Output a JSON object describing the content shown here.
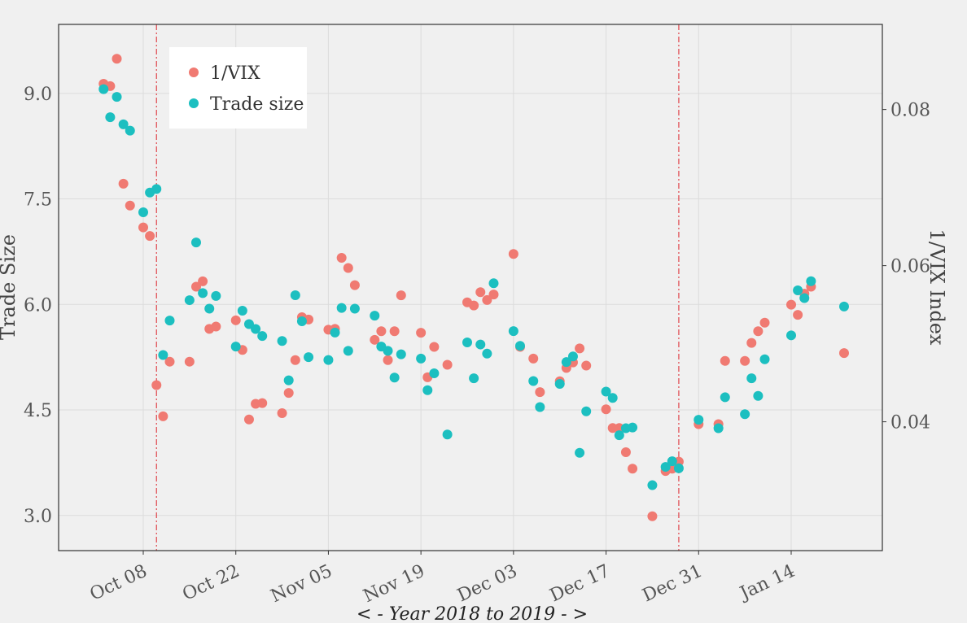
{
  "chart_data": {
    "type": "scatter",
    "xlabel": "< - Year 2018 to 2019 - >",
    "ylabel": "Trade Size",
    "y2label": "1/VIX Index",
    "x_ticks": [
      "Oct 08",
      "Oct 22",
      "Nov 05",
      "Nov 19",
      "Dec 03",
      "Dec 17",
      "Dec 31",
      "Jan 14"
    ],
    "y_ticks": [
      "3.0",
      "4.5",
      "6.0",
      "7.5",
      "9.0"
    ],
    "y2_ticks": [
      "0.04",
      "0.06",
      "0.08"
    ],
    "ylim": [
      2.5,
      9.98
    ],
    "y2lim": [
      0.0235,
      0.0909
    ],
    "grid": true,
    "legend_position": "top-left",
    "vlines": [
      "2018-10-10",
      "2018-12-28"
    ],
    "series": [
      {
        "name": "1/VIX",
        "color": "#F07A72",
        "axis": "right",
        "points": [
          [
            "2018-10-02",
            0.0833
          ],
          [
            "2018-10-03",
            0.083
          ],
          [
            "2018-10-04",
            0.0865
          ],
          [
            "2018-10-05",
            0.0705
          ],
          [
            "2018-10-06",
            0.0677
          ],
          [
            "2018-10-08",
            0.0649
          ],
          [
            "2018-10-09",
            0.0638
          ],
          [
            "2018-10-10",
            0.0447
          ],
          [
            "2018-10-11",
            0.0407
          ],
          [
            "2018-10-12",
            0.0477
          ],
          [
            "2018-10-15",
            0.0477
          ],
          [
            "2018-10-16",
            0.0573
          ],
          [
            "2018-10-17",
            0.058
          ],
          [
            "2018-10-18",
            0.0519
          ],
          [
            "2018-10-19",
            0.0522
          ],
          [
            "2018-10-22",
            0.053
          ],
          [
            "2018-10-23",
            0.0492
          ],
          [
            "2018-10-24",
            0.0403
          ],
          [
            "2018-10-25",
            0.0423
          ],
          [
            "2018-10-26",
            0.0424
          ],
          [
            "2018-10-29",
            0.0411
          ],
          [
            "2018-10-30",
            0.0437
          ],
          [
            "2018-10-31",
            0.0479
          ],
          [
            "2018-11-01",
            0.0534
          ],
          [
            "2018-11-02",
            0.0531
          ],
          [
            "2018-11-05",
            0.0518
          ],
          [
            "2018-11-06",
            0.0519
          ],
          [
            "2018-11-07",
            0.061
          ],
          [
            "2018-11-08",
            0.0597
          ],
          [
            "2018-11-09",
            0.0575
          ],
          [
            "2018-11-12",
            0.0505
          ],
          [
            "2018-11-13",
            0.0516
          ],
          [
            "2018-11-14",
            0.0479
          ],
          [
            "2018-11-15",
            0.0516
          ],
          [
            "2018-11-16",
            0.0562
          ],
          [
            "2018-11-19",
            0.0514
          ],
          [
            "2018-11-20",
            0.0457
          ],
          [
            "2018-11-21",
            0.0496
          ],
          [
            "2018-11-23",
            0.0473
          ],
          [
            "2018-11-26",
            0.0553
          ],
          [
            "2018-11-27",
            0.0549
          ],
          [
            "2018-11-28",
            0.0566
          ],
          [
            "2018-11-29",
            0.0556
          ],
          [
            "2018-11-30",
            0.0563
          ],
          [
            "2018-12-03",
            0.0615
          ],
          [
            "2018-12-04",
            0.0496
          ],
          [
            "2018-12-06",
            0.0481
          ],
          [
            "2018-12-07",
            0.0438
          ],
          [
            "2018-12-10",
            0.0452
          ],
          [
            "2018-12-11",
            0.0469
          ],
          [
            "2018-12-12",
            0.0476
          ],
          [
            "2018-12-13",
            0.0494
          ],
          [
            "2018-12-14",
            0.0472
          ],
          [
            "2018-12-17",
            0.0416
          ],
          [
            "2018-12-18",
            0.0392
          ],
          [
            "2018-12-19",
            0.0392
          ],
          [
            "2018-12-20",
            0.0361
          ],
          [
            "2018-12-21",
            0.034
          ],
          [
            "2018-12-24",
            0.0279
          ],
          [
            "2018-12-26",
            0.0337
          ],
          [
            "2018-12-27",
            0.034
          ],
          [
            "2018-12-28",
            0.0349
          ],
          [
            "2018-12-31",
            0.0397
          ],
          [
            "2019-01-03",
            0.0397
          ],
          [
            "2019-01-04",
            0.0478
          ],
          [
            "2019-01-07",
            0.0478
          ],
          [
            "2019-01-08",
            0.0501
          ],
          [
            "2019-01-09",
            0.0516
          ],
          [
            "2019-01-10",
            0.0527
          ],
          [
            "2019-01-14",
            0.055
          ],
          [
            "2019-01-15",
            0.0537
          ],
          [
            "2019-01-16",
            0.0564
          ],
          [
            "2019-01-17",
            0.0573
          ],
          [
            "2019-01-22",
            0.0488
          ]
        ]
      },
      {
        "name": "Trade size",
        "color": "#1CBFC0",
        "axis": "left",
        "points": [
          [
            "2018-10-02",
            9.06
          ],
          [
            "2018-10-03",
            8.66
          ],
          [
            "2018-10-04",
            8.95
          ],
          [
            "2018-10-05",
            8.56
          ],
          [
            "2018-10-06",
            8.47
          ],
          [
            "2018-10-08",
            7.31
          ],
          [
            "2018-10-09",
            7.59
          ],
          [
            "2018-10-10",
            7.64
          ],
          [
            "2018-10-11",
            5.28
          ],
          [
            "2018-10-12",
            5.77
          ],
          [
            "2018-10-15",
            6.06
          ],
          [
            "2018-10-16",
            6.88
          ],
          [
            "2018-10-17",
            6.16
          ],
          [
            "2018-10-18",
            5.94
          ],
          [
            "2018-10-19",
            6.12
          ],
          [
            "2018-10-22",
            5.4
          ],
          [
            "2018-10-23",
            5.91
          ],
          [
            "2018-10-24",
            5.72
          ],
          [
            "2018-10-25",
            5.65
          ],
          [
            "2018-10-26",
            5.55
          ],
          [
            "2018-10-29",
            5.48
          ],
          [
            "2018-10-30",
            4.92
          ],
          [
            "2018-10-31",
            6.13
          ],
          [
            "2018-11-01",
            5.76
          ],
          [
            "2018-11-02",
            5.25
          ],
          [
            "2018-11-05",
            5.21
          ],
          [
            "2018-11-06",
            5.6
          ],
          [
            "2018-11-07",
            5.95
          ],
          [
            "2018-11-08",
            5.34
          ],
          [
            "2018-11-09",
            5.94
          ],
          [
            "2018-11-12",
            5.84
          ],
          [
            "2018-11-13",
            5.4
          ],
          [
            "2018-11-14",
            5.34
          ],
          [
            "2018-11-15",
            4.96
          ],
          [
            "2018-11-16",
            5.29
          ],
          [
            "2018-11-19",
            5.23
          ],
          [
            "2018-11-20",
            4.78
          ],
          [
            "2018-11-21",
            5.02
          ],
          [
            "2018-11-23",
            4.15
          ],
          [
            "2018-11-26",
            5.46
          ],
          [
            "2018-11-27",
            4.95
          ],
          [
            "2018-11-28",
            5.43
          ],
          [
            "2018-11-29",
            5.3
          ],
          [
            "2018-11-30",
            6.3
          ],
          [
            "2018-12-03",
            5.62
          ],
          [
            "2018-12-04",
            5.41
          ],
          [
            "2018-12-06",
            4.91
          ],
          [
            "2018-12-07",
            4.54
          ],
          [
            "2018-12-10",
            4.87
          ],
          [
            "2018-12-11",
            5.18
          ],
          [
            "2018-12-12",
            5.26
          ],
          [
            "2018-12-13",
            3.89
          ],
          [
            "2018-12-14",
            4.48
          ],
          [
            "2018-12-17",
            4.76
          ],
          [
            "2018-12-18",
            4.67
          ],
          [
            "2018-12-19",
            4.14
          ],
          [
            "2018-12-20",
            4.24
          ],
          [
            "2018-12-21",
            4.25
          ],
          [
            "2018-12-24",
            3.43
          ],
          [
            "2018-12-26",
            3.69
          ],
          [
            "2018-12-27",
            3.77
          ],
          [
            "2018-12-28",
            3.67
          ],
          [
            "2018-12-31",
            4.36
          ],
          [
            "2019-01-03",
            4.24
          ],
          [
            "2019-01-04",
            4.68
          ],
          [
            "2019-01-07",
            4.44
          ],
          [
            "2019-01-08",
            4.95
          ],
          [
            "2019-01-09",
            4.7
          ],
          [
            "2019-01-10",
            5.22
          ],
          [
            "2019-01-14",
            5.56
          ],
          [
            "2019-01-15",
            6.2
          ],
          [
            "2019-01-16",
            6.09
          ],
          [
            "2019-01-17",
            6.33
          ],
          [
            "2019-01-22",
            5.97
          ]
        ]
      }
    ]
  }
}
